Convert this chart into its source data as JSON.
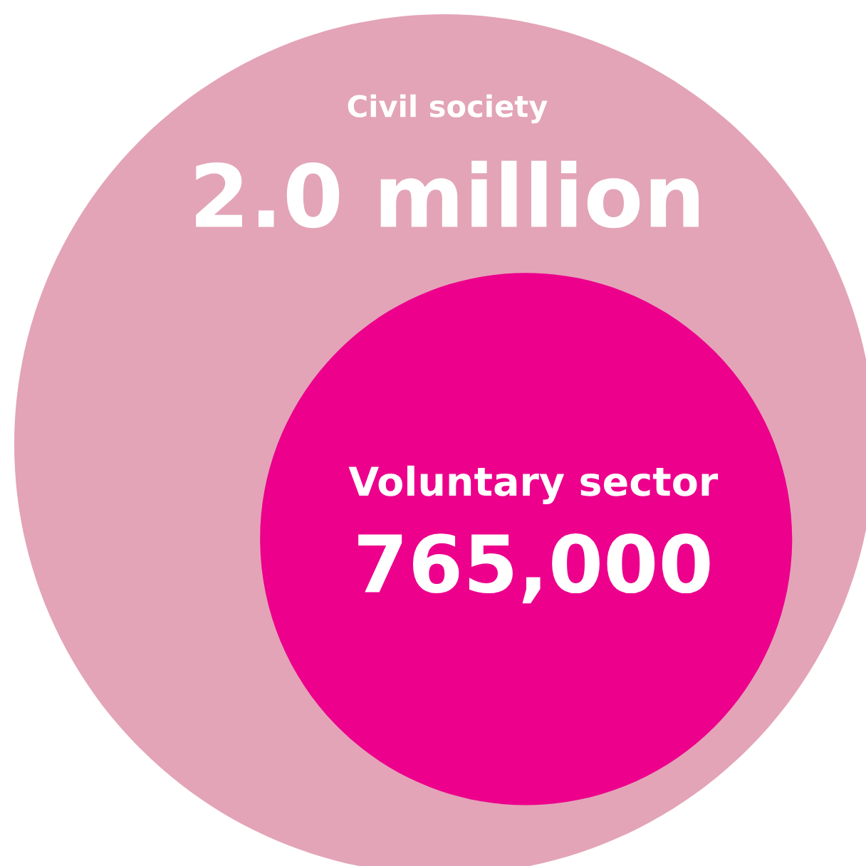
{
  "chart_data": {
    "type": "other",
    "categories": [
      "Civil society",
      "Voluntary sector"
    ],
    "values": [
      2000000,
      765000
    ],
    "value_labels": [
      "2.0 million",
      "765,000"
    ],
    "colors": [
      "#e3a4b7",
      "#ec008c"
    ]
  }
}
